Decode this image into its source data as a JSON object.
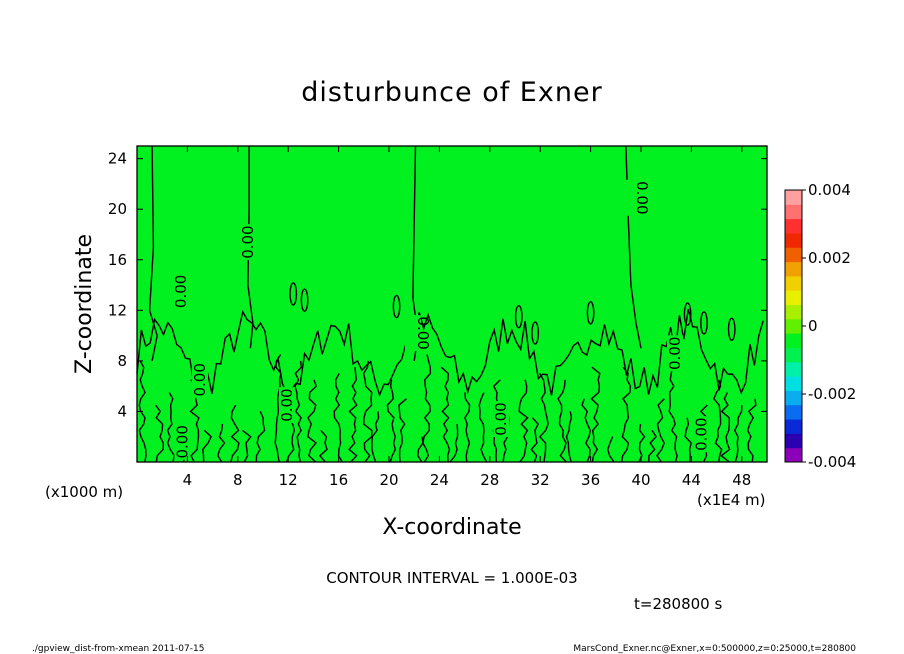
{
  "chart_data": {
    "type": "heatmap",
    "subtype": "contour",
    "title": "disturbunce of Exner",
    "xlabel": "X-coordinate",
    "ylabel": "Z-coordinate",
    "x_unit_note": "(x1E4 m)",
    "y_unit_note": "(x1000 m)",
    "xlim": [
      0,
      50
    ],
    "ylim": [
      0,
      25
    ],
    "xticks": [
      "4",
      "8",
      "12",
      "16",
      "20",
      "24",
      "28",
      "32",
      "36",
      "40",
      "44",
      "48"
    ],
    "yticks": [
      "4",
      "8",
      "12",
      "16",
      "20",
      "24"
    ],
    "colorbar": {
      "min": -0.004,
      "max": 0.004,
      "ticks": [
        "0.004",
        "0.002",
        "0",
        "-0.002",
        "-0.004"
      ],
      "colors": [
        "#8b00b8",
        "#2a00b0",
        "#0a2ad8",
        "#0a6cf0",
        "#0aaef0",
        "#00e0e0",
        "#00f0a8",
        "#00f050",
        "#00f020",
        "#60f000",
        "#a8f000",
        "#e8f000",
        "#f0d000",
        "#f0a000",
        "#f06000",
        "#f02800",
        "#ff3030",
        "#ff7070",
        "#ffa0a0"
      ]
    },
    "contour_interval": "CONTOUR INTERVAL = 1.000E-03",
    "contour_labels": [
      "0.00",
      "0.00",
      "0.00",
      "0.00",
      "0.00",
      "0.00",
      "0.00",
      "0.00",
      "0.00",
      "0.00"
    ],
    "time_label": "t=280800 s",
    "background_level": 0,
    "grid": false
  },
  "footer": {
    "left": "./gpview_dist-from-xmean  2011-07-15",
    "right": "MarsCond_Exner.nc@Exner,x=0:500000,z=0:25000,t=280800"
  }
}
